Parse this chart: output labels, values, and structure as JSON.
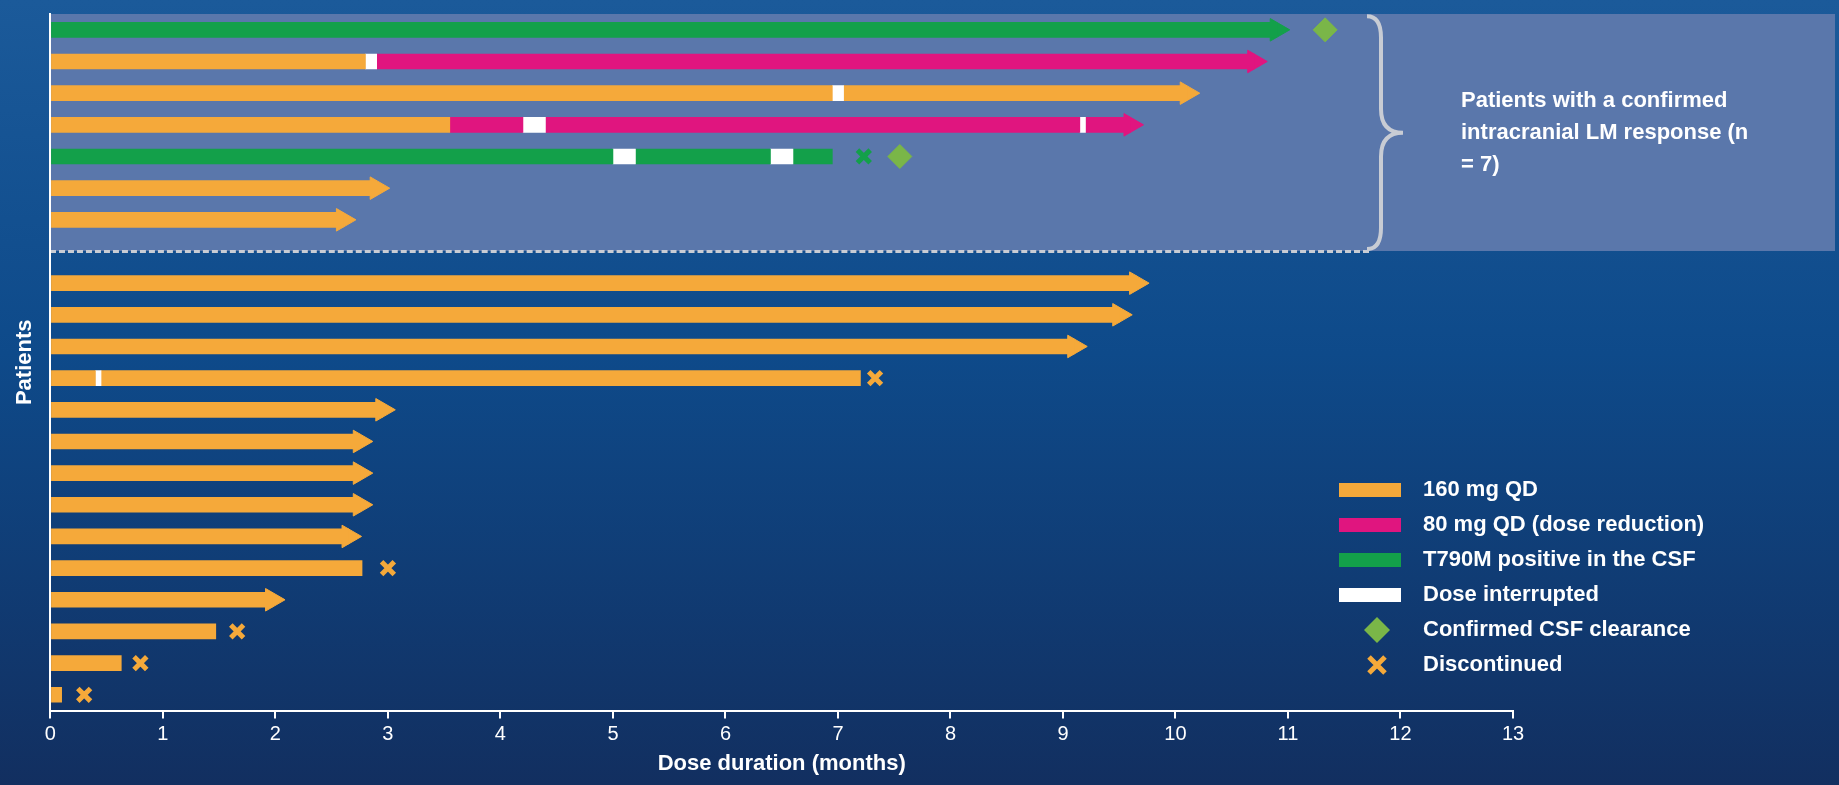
{
  "chart_data": {
    "type": "bar",
    "orientation": "horizontal",
    "stacked": true,
    "xlabel": "Dose duration (months)",
    "ylabel": "Patients",
    "categories": [
      null,
      null,
      null,
      null,
      null,
      null,
      null,
      null,
      null,
      null,
      null,
      null,
      null,
      null,
      null,
      null,
      null,
      null,
      null,
      null,
      null,
      null
    ],
    "xlim": [
      0,
      13
    ],
    "xticks": [
      0,
      1,
      2,
      3,
      4,
      5,
      6,
      7,
      8,
      9,
      10,
      11,
      12,
      13
    ],
    "tick_labels": "x",
    "grid": false,
    "legend": "bottom right",
    "annotations": [
      "Patients with a confirmed intracranial LM response (n = 7)"
    ],
    "series": [
      {
        "name": "160 mg QD",
        "color": "#f5a93a",
        "values": [
          null,
          2.8,
          6.95,
          3.55,
          null,
          2.9,
          2.6,
          null,
          9.65,
          9.5,
          9.1,
          0.4,
          2.95,
          2.75,
          2.75,
          2.75,
          2.65,
          2.77,
          1.97,
          1.47,
          0.63,
          0.1
        ]
      },
      {
        "name": "80 mg QD (dose reduction)",
        "color": "#e0157f",
        "values": [
          null,
          null,
          null,
          0.65,
          null,
          null,
          null,
          null,
          null,
          null,
          null,
          null,
          null,
          null,
          null,
          null,
          null,
          null,
          null,
          null,
          null,
          null
        ]
      },
      {
        "name": "T790M positive in the CSF",
        "color": "#13a04a",
        "values": [
          10.9,
          null,
          null,
          null,
          5.0,
          null,
          null,
          null,
          null,
          null,
          null,
          null,
          null,
          null,
          null,
          null,
          null,
          null,
          null,
          null,
          null,
          null
        ]
      },
      {
        "name": "Dose interrupted",
        "color": "#ffffff",
        "values": [
          null,
          0.1,
          0.1,
          0.2,
          0.2,
          null,
          null,
          null,
          null,
          null,
          null,
          0.05,
          null,
          null,
          null,
          null,
          null,
          null,
          null,
          null,
          null,
          null
        ]
      },
      {
        "color": "#e0157f",
        "values": [
          null,
          7.8,
          null,
          4.75,
          null,
          null,
          null,
          null,
          null,
          null,
          null,
          null,
          null,
          null,
          null,
          null,
          null,
          null,
          null,
          null,
          null,
          null
        ]
      },
      {
        "color": "#f5a93a",
        "values": [
          null,
          null,
          3.05,
          null,
          null,
          null,
          null,
          null,
          null,
          null,
          null,
          6.75,
          null,
          null,
          null,
          null,
          null,
          null,
          null,
          null,
          null,
          null
        ]
      },
      {
        "color": "#13a04a",
        "values": [
          null,
          null,
          null,
          null,
          1.2,
          null,
          null,
          null,
          null,
          null,
          null,
          null,
          null,
          null,
          null,
          null,
          null,
          null,
          null,
          null,
          null,
          null
        ]
      },
      {
        "color": "#ffffff",
        "values": [
          null,
          null,
          null,
          0.05,
          0.2,
          null,
          null,
          null,
          null,
          null,
          null,
          null,
          null,
          null,
          null,
          null,
          null,
          null,
          null,
          null,
          null,
          null
        ]
      },
      {
        "color": "#e0157f",
        "values": [
          null,
          null,
          null,
          0.4,
          null,
          null,
          null,
          null,
          null,
          null,
          null,
          null,
          null,
          null,
          null,
          null,
          null,
          null,
          null,
          null,
          null,
          null
        ]
      },
      {
        "color": "#13a04a",
        "values": [
          null,
          null,
          null,
          null,
          0.35,
          null,
          null,
          null,
          null,
          null,
          null,
          null,
          null,
          null,
          null,
          null,
          null,
          null,
          null,
          null,
          null,
          null
        ]
      },
      {
        "type": "scatter",
        "marker": "triangle",
        "colors": [
          "#13a04a",
          "#e0157f",
          "#f5a93a",
          "#e0157f",
          null,
          "#f5a93a",
          "#f5a93a",
          null,
          "#f5a93a",
          "#f5a93a",
          "#f5a93a",
          null,
          "#f5a93a",
          "#f5a93a",
          "#f5a93a",
          "#f5a93a",
          "#f5a93a",
          null,
          "#f5a93a",
          null,
          null,
          null
        ],
        "values": [
          10.9,
          10.7,
          10.1,
          9.6,
          null,
          2.9,
          2.6,
          null,
          9.65,
          9.5,
          9.1,
          null,
          2.95,
          2.75,
          2.75,
          2.75,
          2.65,
          null,
          1.97,
          null,
          null,
          null
        ]
      },
      {
        "name": "Confirmed CSF clearance",
        "type": "scatter",
        "marker": "diamond",
        "color": "#7ab648",
        "values": [
          11.33,
          null,
          null,
          null,
          7.55,
          null,
          null,
          null,
          null,
          null,
          null,
          null,
          null,
          null,
          null,
          null,
          null,
          null,
          null,
          null,
          null,
          null
        ]
      },
      {
        "name": "Discontinued",
        "type": "scatter",
        "marker": "cross",
        "color": "#f5a93a",
        "colors": [
          null,
          null,
          null,
          null,
          "#13a04a",
          null,
          null,
          null,
          null,
          null,
          null,
          "#f5a93a",
          null,
          null,
          null,
          null,
          null,
          "#f5a93a",
          null,
          "#f5a93a",
          "#f5a93a",
          "#f5a93a"
        ],
        "values": [
          null,
          null,
          null,
          null,
          7.23,
          null,
          null,
          null,
          null,
          null,
          null,
          7.33,
          null,
          null,
          null,
          null,
          null,
          3.0,
          null,
          1.66,
          0.8,
          0.3
        ]
      }
    ]
  }
}
